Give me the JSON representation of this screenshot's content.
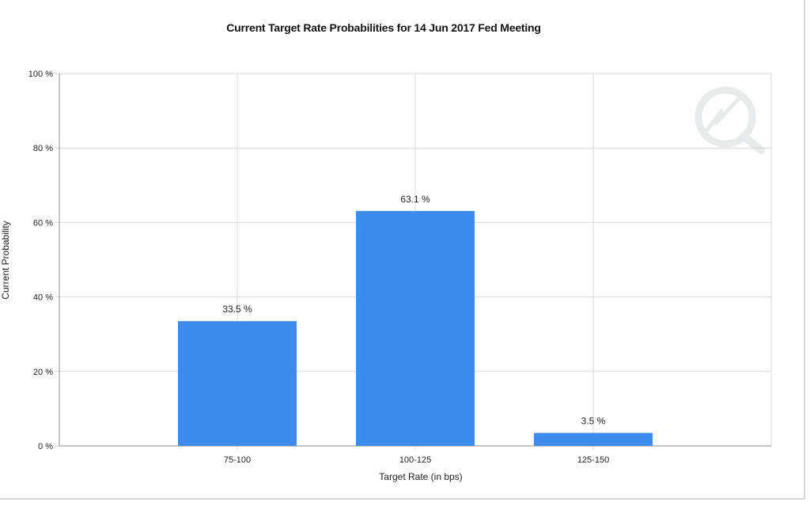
{
  "chart_data": {
    "type": "bar",
    "title": "Current Target Rate Probabilities for 14 Jun 2017 Fed Meeting",
    "xlabel": "Target Rate (in bps)",
    "ylabel": "Current Probability",
    "categories": [
      "75-100",
      "100-125",
      "125-150"
    ],
    "values": [
      33.5,
      63.1,
      3.5
    ],
    "data_labels": [
      "33.5 %",
      "63.1 %",
      "3.5 %"
    ],
    "ylim": [
      0,
      100
    ],
    "yticks": [
      0,
      20,
      40,
      60,
      80,
      100
    ],
    "ytick_labels": [
      "0 %",
      "20 %",
      "40 %",
      "60 %",
      "80 %",
      "100 %"
    ],
    "grid": true,
    "bar_color": "#3d8bea",
    "grid_color": "#d9d9d9"
  },
  "watermark_icon": "lightning-q-logo-icon"
}
